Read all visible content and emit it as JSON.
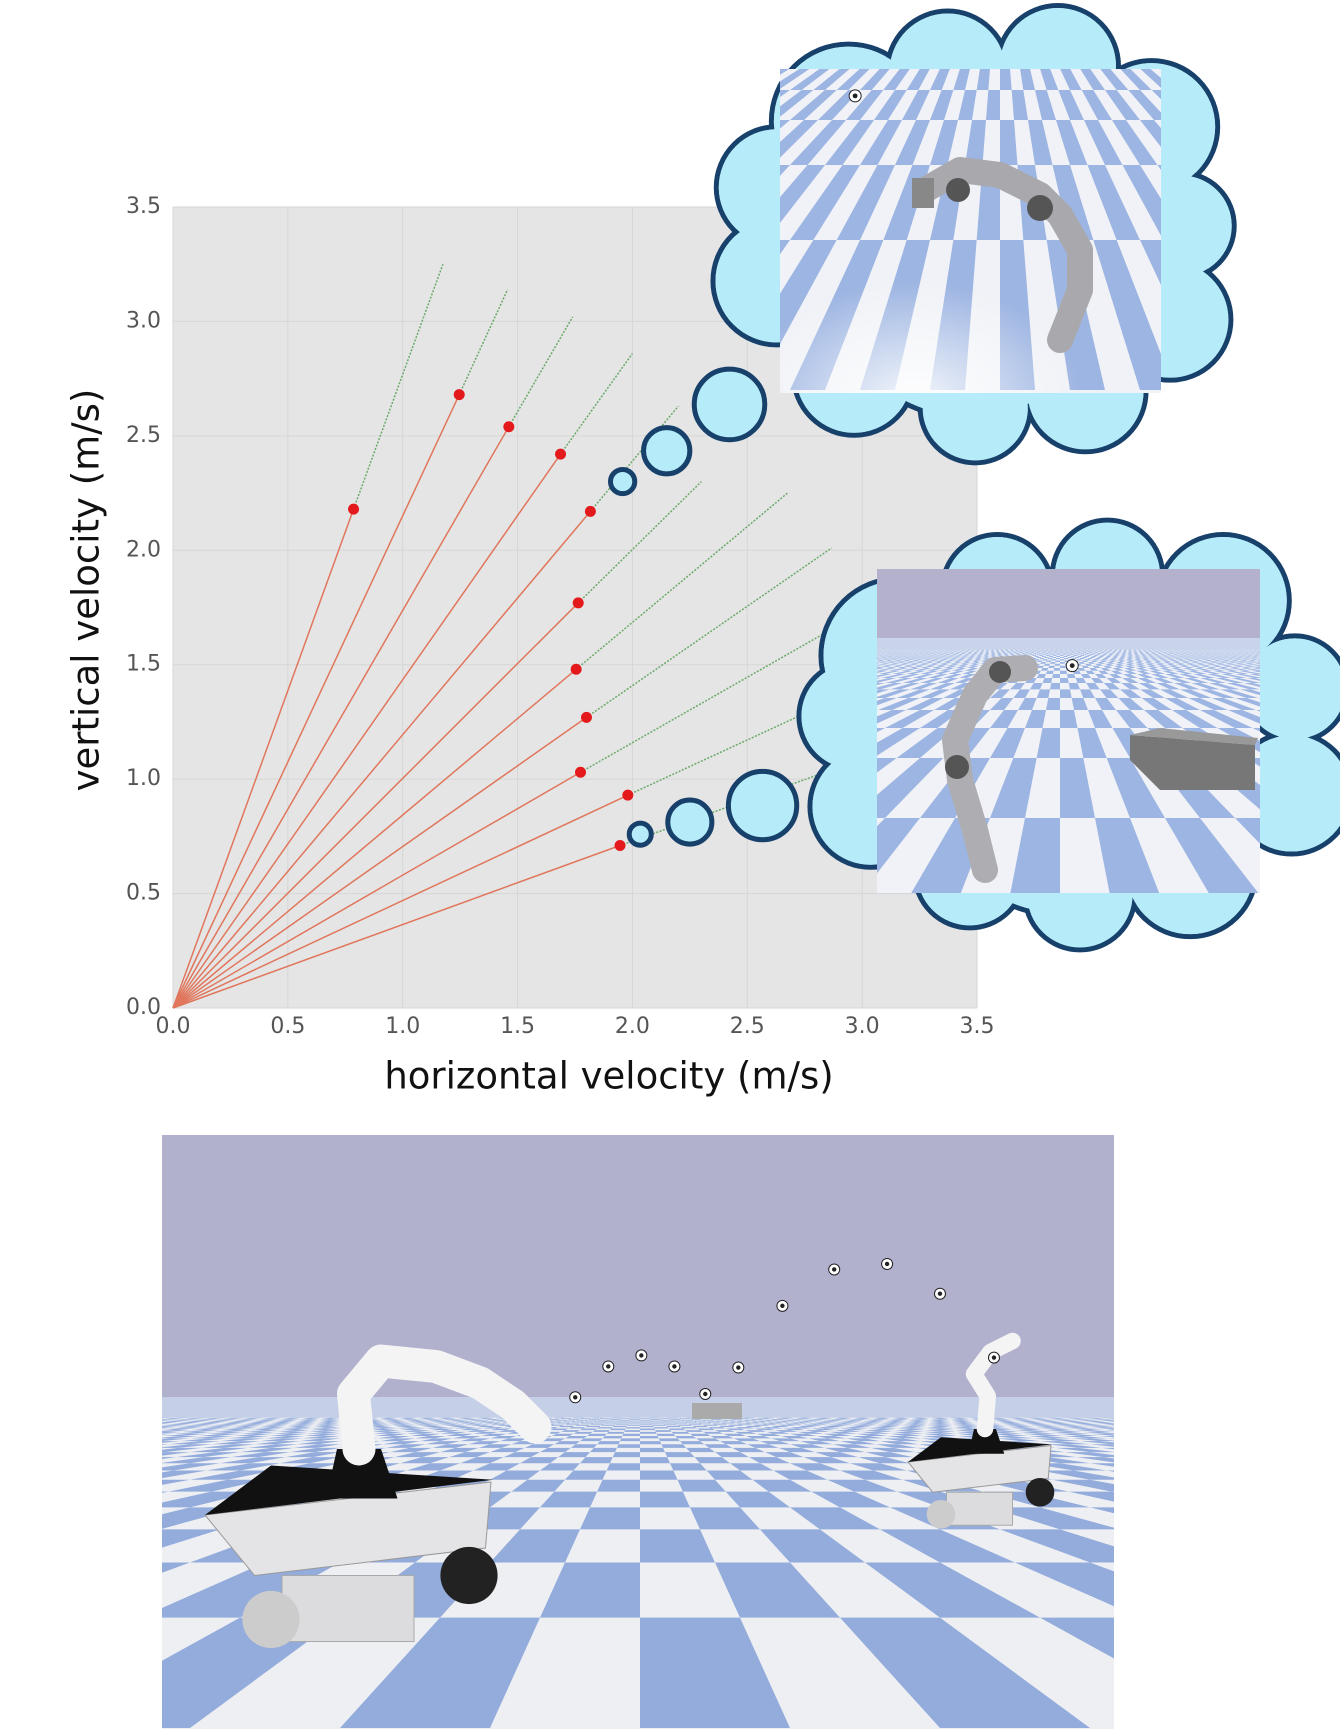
{
  "chart_data": {
    "type": "scatter",
    "xlabel": "horizontal velocity (m/s)",
    "ylabel": "vertical velocity (m/s)",
    "x": [
      0.786,
      1.246,
      1.462,
      1.687,
      1.817,
      1.764,
      1.755,
      1.8,
      1.774,
      1.98,
      1.946
    ],
    "y": [
      2.18,
      2.68,
      2.54,
      2.42,
      2.17,
      1.77,
      1.48,
      1.27,
      1.03,
      0.93,
      0.71
    ],
    "x_end": [
      1.175,
      1.457,
      1.74,
      2.0,
      2.2,
      2.3,
      2.675,
      2.867,
      2.963,
      2.95,
      2.95
    ],
    "y_end": [
      3.25,
      3.14,
      3.02,
      2.86,
      2.63,
      2.3,
      2.25,
      2.01,
      1.71,
      1.38,
      1.07
    ],
    "point_color": "#e3191c",
    "ray_color": "#e0765c",
    "trajectory_color": "#6aaa6a",
    "xlim": [
      0,
      3.5
    ],
    "ylim": [
      0,
      3.5
    ],
    "xticks": [
      {
        "value": 0,
        "label": "0.0"
      },
      0.5,
      {
        "value": 1,
        "label": "1.0"
      },
      1.5,
      {
        "value": 2,
        "label": "2.0"
      },
      2.5,
      {
        "value": 3,
        "label": "3.0"
      },
      3.5
    ],
    "yticks": [
      {
        "value": 0,
        "label": "0.0"
      },
      0.5,
      {
        "value": 1,
        "label": "1.0"
      },
      1.5,
      {
        "value": 2,
        "label": "2.0"
      },
      2.5,
      {
        "value": 3,
        "label": "3.0"
      },
      3.5
    ],
    "grid": true
  }
}
